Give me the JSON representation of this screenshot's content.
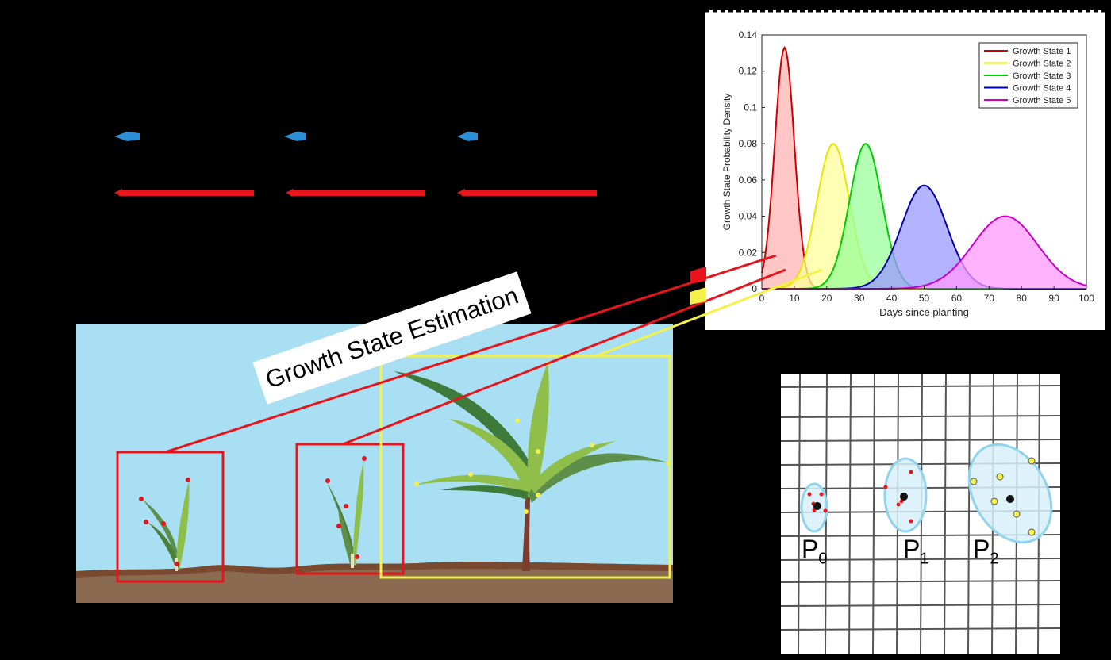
{
  "banner": {
    "text": "Growth State Estimation"
  },
  "colors": {
    "sky": "#A8DFF2",
    "soil": "#8A6A50",
    "box_red": "#E8141B",
    "box_yellow": "#F5F04A",
    "stem": "#7A3D2E",
    "leaf_dark": "#3E7B3A",
    "leaf_light": "#8FBF4A",
    "ellipse_fill": "#D8F0FA",
    "ellipse_stroke": "#8FD3EE"
  },
  "partitions": [
    {
      "letter": "P",
      "index": "0"
    },
    {
      "letter": "P",
      "index": "1"
    },
    {
      "letter": "P",
      "index": "2"
    }
  ],
  "chart_data": {
    "type": "area",
    "xlabel": "Days since planting",
    "ylabel": "Growth State Probability Density",
    "xlim": [
      0,
      100
    ],
    "ylim": [
      0,
      0.14
    ],
    "xticks": [
      0,
      10,
      20,
      30,
      40,
      50,
      60,
      70,
      80,
      90,
      100
    ],
    "yticks": [
      0,
      0.02,
      0.04,
      0.06,
      0.08,
      0.1,
      0.12,
      0.14
    ],
    "legend_position": "top-right",
    "series": [
      {
        "name": "Growth State 1",
        "color": "#CC0000",
        "fill": "#FFB3B3",
        "mean": 7,
        "sd": 3,
        "peak": 0.133
      },
      {
        "name": "Growth State 2",
        "color": "#E6E600",
        "fill": "#FFFF99",
        "mean": 22,
        "sd": 5,
        "peak": 0.08
      },
      {
        "name": "Growth State 3",
        "color": "#00CC00",
        "fill": "#99FF99",
        "mean": 32,
        "sd": 5,
        "peak": 0.08
      },
      {
        "name": "Growth State 4",
        "color": "#0000B3",
        "fill": "#9999FF",
        "mean": 50,
        "sd": 7,
        "peak": 0.057
      },
      {
        "name": "Growth State 5",
        "color": "#CC00CC",
        "fill": "#FF99FF",
        "mean": 75,
        "sd": 10,
        "peak": 0.04
      }
    ]
  }
}
